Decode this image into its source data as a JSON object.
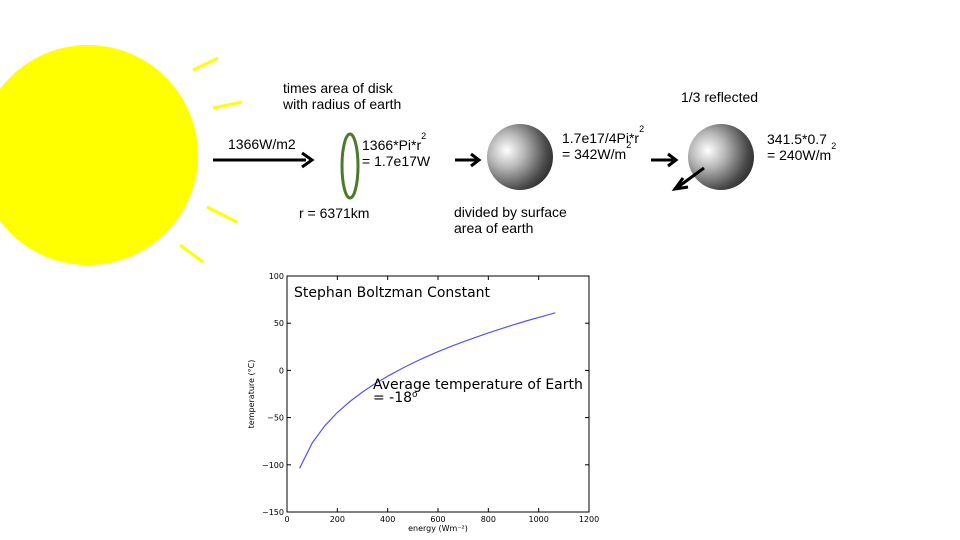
{
  "colors": {
    "sun": "#ffff00",
    "disk": "#4a7a2a",
    "curve": "#5555ee"
  },
  "labels": {
    "flux": "1366W/m2",
    "disk_caption_line1": "times area of disk",
    "disk_caption_line2": "with radius of earth",
    "calc1_a": "1366*Pi*r",
    "calc1_a_sup": "2",
    "calc1_b": "= 1.7e17W",
    "radius": "r = 6371km",
    "calc2_a": "1.7e17/4Pi*r",
    "calc2_a_sup": "2",
    "calc2_b": "= 342W/m",
    "calc2_b_sup": "2",
    "divide_line1": "divided by surface",
    "divide_line2": "area of earth",
    "reflected": "1/3 reflected",
    "calc3_a": "341.5*0.7",
    "calc3_b": "= 240W/m",
    "calc3_b_sup": "2"
  },
  "chart_data": {
    "type": "line",
    "xlabel": "energy (Wm⁻²)",
    "ylabel": "temperature (°C)",
    "xlim": [
      0,
      1200
    ],
    "ylim": [
      -150,
      100
    ],
    "xticks": [
      0,
      200,
      400,
      600,
      800,
      1000,
      1200
    ],
    "yticks": [
      -150,
      -100,
      -50,
      0,
      50,
      100
    ],
    "x": [
      50,
      100,
      150,
      200,
      250,
      300,
      350,
      400,
      450,
      500,
      550,
      600,
      650,
      700,
      750,
      800,
      850,
      900,
      950,
      1000,
      1050,
      1066
    ],
    "y": [
      -103.7,
      -76.9,
      -58.7,
      -44.6,
      -32.9,
      -22.9,
      -14.0,
      -6.1,
      1.1,
      7.8,
      14.0,
      19.8,
      25.2,
      30.3,
      35.1,
      39.7,
      44.1,
      48.3,
      52.3,
      56.1,
      59.8,
      61.0
    ],
    "annotation_title": "Stephan Boltzman Constant",
    "annotation_line1": "Average temperature of Earth",
    "annotation_line2": "= -18",
    "annotation_line2_sup": "o"
  }
}
